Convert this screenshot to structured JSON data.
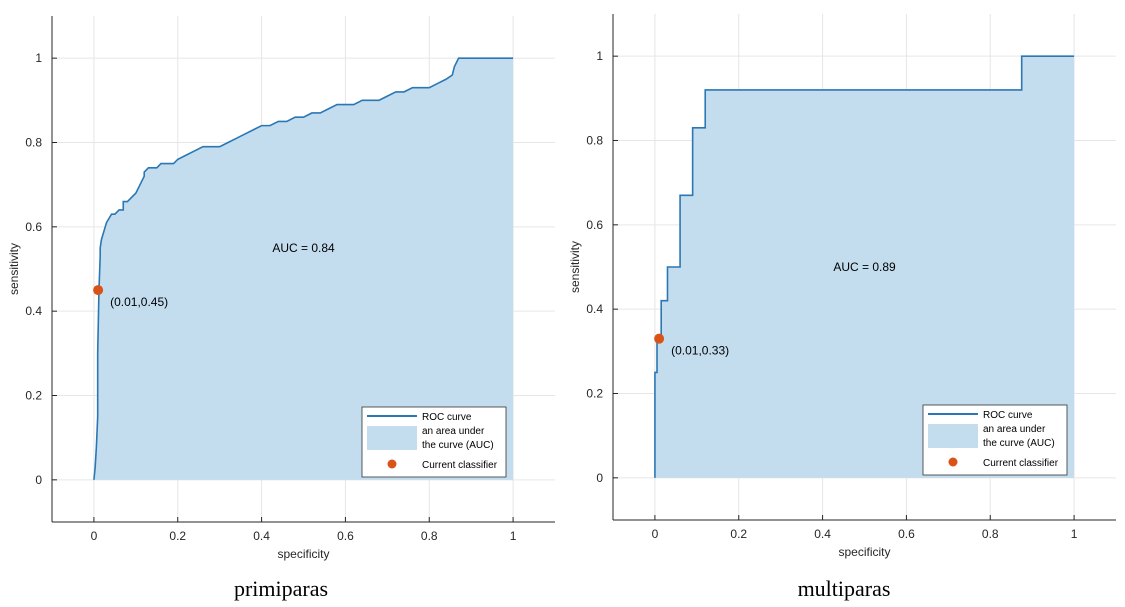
{
  "colors": {
    "roc_line": "#2a77b4",
    "auc_fill": "#c3ddee",
    "classifier_point": "#d95319",
    "grid": "#e6e6e6",
    "axis": "#262626"
  },
  "chart_data": [
    {
      "type": "area",
      "caption": "primiparas",
      "xlabel": "specificity",
      "ylabel": "sensitivity",
      "xlim": [
        -0.1,
        1.1
      ],
      "ylim": [
        -0.1,
        1.1
      ],
      "xticks": [
        0,
        0.2,
        0.4,
        0.6,
        0.8,
        1
      ],
      "yticks": [
        0,
        0.2,
        0.4,
        0.6,
        0.8,
        1
      ],
      "grid": true,
      "auc_label": "AUC = 0.84",
      "auc_label_at": [
        0.5,
        0.55
      ],
      "classifier": {
        "x": 0.01,
        "y": 0.45,
        "label": "(0.01,0.45)"
      },
      "legend": {
        "placement": "bottom-right",
        "items": [
          {
            "kind": "line",
            "label": "ROC curve"
          },
          {
            "kind": "patch",
            "label": "an area under",
            "label2": "the curve (AUC)"
          },
          {
            "kind": "marker",
            "label": "Current classifier"
          }
        ]
      },
      "series": [
        {
          "name": "ROC curve",
          "x": [
            0,
            0.003,
            0.006,
            0.009,
            0.009,
            0.012,
            0.015,
            0.015,
            0.018,
            0.021,
            0.024,
            0.027,
            0.03,
            0.036,
            0.042,
            0.05,
            0.06,
            0.07,
            0.07,
            0.08,
            0.09,
            0.1,
            0.11,
            0.12,
            0.12,
            0.13,
            0.14,
            0.15,
            0.16,
            0.17,
            0.18,
            0.19,
            0.2,
            0.22,
            0.24,
            0.26,
            0.28,
            0.3,
            0.32,
            0.34,
            0.36,
            0.38,
            0.4,
            0.42,
            0.44,
            0.46,
            0.48,
            0.5,
            0.52,
            0.54,
            0.56,
            0.58,
            0.6,
            0.62,
            0.64,
            0.66,
            0.68,
            0.7,
            0.72,
            0.74,
            0.76,
            0.78,
            0.8,
            0.82,
            0.84,
            0.855,
            0.86,
            0.87,
            1
          ],
          "y": [
            0,
            0.03,
            0.08,
            0.15,
            0.3,
            0.45,
            0.53,
            0.55,
            0.57,
            0.58,
            0.59,
            0.6,
            0.61,
            0.62,
            0.63,
            0.63,
            0.64,
            0.64,
            0.66,
            0.66,
            0.67,
            0.68,
            0.7,
            0.72,
            0.73,
            0.74,
            0.74,
            0.74,
            0.75,
            0.75,
            0.75,
            0.75,
            0.76,
            0.77,
            0.78,
            0.79,
            0.79,
            0.79,
            0.8,
            0.81,
            0.82,
            0.83,
            0.84,
            0.84,
            0.85,
            0.85,
            0.86,
            0.86,
            0.87,
            0.87,
            0.88,
            0.89,
            0.89,
            0.89,
            0.9,
            0.9,
            0.9,
            0.91,
            0.92,
            0.92,
            0.93,
            0.93,
            0.93,
            0.94,
            0.95,
            0.96,
            0.98,
            1.0,
            1.0
          ]
        }
      ]
    },
    {
      "type": "area",
      "caption": "multiparas",
      "xlabel": "specificity",
      "ylabel": "sensitivity",
      "xlim": [
        -0.1,
        1.1
      ],
      "ylim": [
        -0.1,
        1.1
      ],
      "xticks": [
        0,
        0.2,
        0.4,
        0.6,
        0.8,
        1
      ],
      "yticks": [
        0,
        0.2,
        0.4,
        0.6,
        0.8,
        1
      ],
      "grid": true,
      "auc_label": "AUC = 0.89",
      "auc_label_at": [
        0.5,
        0.5
      ],
      "classifier": {
        "x": 0.01,
        "y": 0.33,
        "label": "(0.01,0.33)"
      },
      "legend": {
        "placement": "bottom-right",
        "items": [
          {
            "kind": "line",
            "label": "ROC curve"
          },
          {
            "kind": "patch",
            "label": "an area under",
            "label2": "the curve (AUC)"
          },
          {
            "kind": "marker",
            "label": "Current classifier"
          }
        ]
      },
      "series": [
        {
          "name": "ROC curve",
          "x": [
            0,
            0,
            0.005,
            0.005,
            0.015,
            0.015,
            0.03,
            0.03,
            0.06,
            0.06,
            0.09,
            0.09,
            0.12,
            0.12,
            0.875,
            0.875,
            1
          ],
          "y": [
            0,
            0.25,
            0.25,
            0.33,
            0.33,
            0.42,
            0.42,
            0.5,
            0.5,
            0.67,
            0.67,
            0.83,
            0.83,
            0.92,
            0.92,
            1.0,
            1.0
          ]
        }
      ]
    }
  ]
}
